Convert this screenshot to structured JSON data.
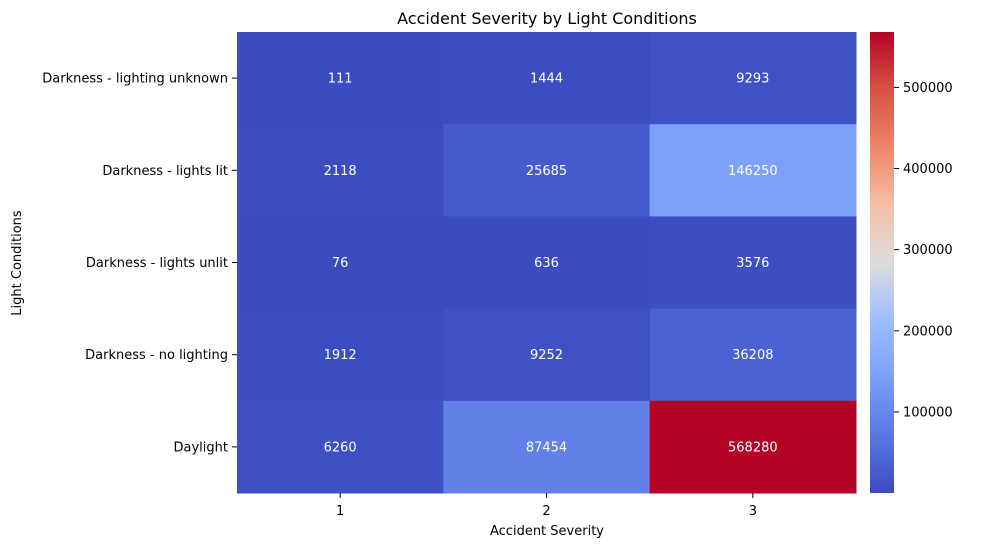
{
  "chart_data": {
    "type": "heatmap",
    "title": "Accident Severity by Light Conditions",
    "xlabel": "Accident Severity",
    "ylabel": "Light Conditions",
    "x_categories": [
      "1",
      "2",
      "3"
    ],
    "y_categories": [
      "Darkness - lighting unknown",
      "Darkness - lights lit",
      "Darkness - lights unlit",
      "Darkness - no lighting",
      "Daylight"
    ],
    "values": [
      [
        111,
        1444,
        9293
      ],
      [
        2118,
        25685,
        146250
      ],
      [
        76,
        636,
        3576
      ],
      [
        1912,
        9252,
        36208
      ],
      [
        6260,
        87454,
        568280
      ]
    ],
    "colormap": "coolwarm",
    "color_range": [
      76,
      568280
    ],
    "colorbar_ticks": [
      "100000",
      "200000",
      "300000",
      "400000",
      "500000"
    ],
    "grid": false,
    "colorbar_position": "right"
  }
}
